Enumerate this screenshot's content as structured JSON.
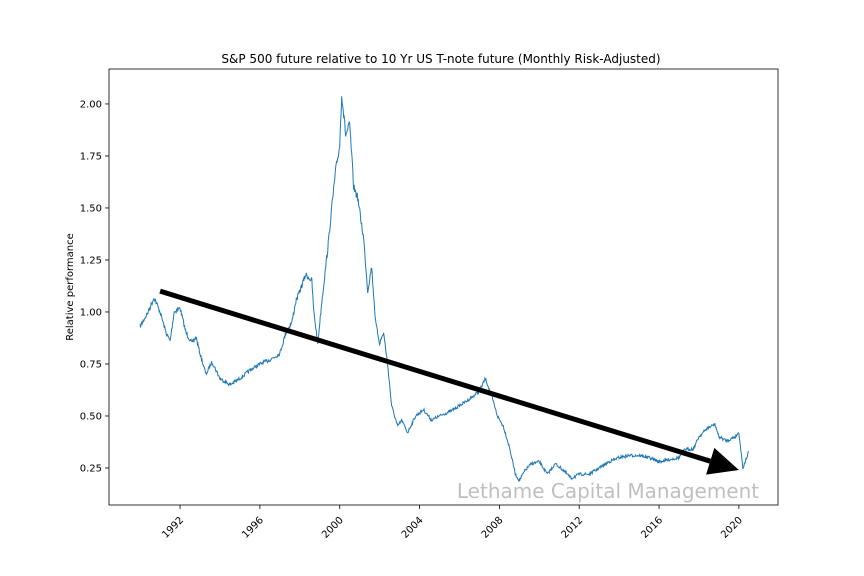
{
  "chart_data": {
    "type": "line",
    "title": "S&P 500 future relative to 10 Yr US T-note future (Monthly Risk-Adjusted)",
    "xlabel": "",
    "ylabel": "Relative performance",
    "xlim": [
      1988.44,
      2021.96
    ],
    "ylim": [
      0.072,
      2.168
    ],
    "xticks": [
      1992,
      1996,
      2000,
      2004,
      2008,
      2012,
      2016,
      2020
    ],
    "xtick_labels": [
      "1992",
      "1996",
      "2000",
      "2004",
      "2008",
      "2012",
      "2016",
      "2020"
    ],
    "yticks": [
      0.25,
      0.5,
      0.75,
      1.0,
      1.25,
      1.5,
      1.75,
      2.0
    ],
    "ytick_labels": [
      "0.25",
      "0.50",
      "0.75",
      "1.00",
      "1.25",
      "1.50",
      "1.75",
      "2.00"
    ],
    "grid": false,
    "line_color": "#1f77b4",
    "series": [
      {
        "x": [
          1990.0,
          1990.4,
          1990.7,
          1991.0,
          1991.3,
          1991.5,
          1991.7,
          1992.0,
          1992.3,
          1992.6,
          1992.8,
          1993.0,
          1993.3,
          1993.6,
          1994.0,
          1994.5,
          1995.0,
          1995.5,
          1996.0,
          1996.5,
          1997.0,
          1997.3,
          1997.6,
          1997.8,
          1998.0,
          1998.3,
          1998.6,
          1998.7,
          1998.9,
          1999.1,
          1999.4,
          1999.6,
          1999.8,
          2000.0,
          2000.1,
          2000.3,
          2000.5,
          2000.7,
          2000.9,
          2001.2,
          2001.4,
          2001.6,
          2001.8,
          2002.0,
          2002.2,
          2002.4,
          2002.6,
          2002.9,
          2003.1,
          2003.4,
          2003.8,
          2004.2,
          2004.6,
          2005.0,
          2005.5,
          2006.0,
          2006.5,
          2007.0,
          2007.3,
          2007.6,
          2007.9,
          2008.2,
          2008.5,
          2008.8,
          2009.0,
          2009.3,
          2009.6,
          2010.0,
          2010.4,
          2010.8,
          2011.2,
          2011.6,
          2012.0,
          2012.5,
          2013.0,
          2013.5,
          2014.0,
          2014.5,
          2015.0,
          2015.5,
          2016.0,
          2016.5,
          2017.0,
          2017.3,
          2017.7,
          2018.0,
          2018.4,
          2018.8,
          2019.0,
          2019.4,
          2019.8,
          2020.0,
          2020.2,
          2020.5
        ],
        "y": [
          0.93,
          1.0,
          1.07,
          1.0,
          0.9,
          0.86,
          1.0,
          1.02,
          0.9,
          0.85,
          0.88,
          0.8,
          0.7,
          0.76,
          0.68,
          0.65,
          0.68,
          0.72,
          0.75,
          0.77,
          0.8,
          0.9,
          0.95,
          1.05,
          1.1,
          1.18,
          1.15,
          1.0,
          0.85,
          1.05,
          1.3,
          1.5,
          1.68,
          1.8,
          2.05,
          1.85,
          1.9,
          1.6,
          1.55,
          1.35,
          1.1,
          1.22,
          0.95,
          0.85,
          0.9,
          0.75,
          0.55,
          0.45,
          0.48,
          0.42,
          0.5,
          0.53,
          0.48,
          0.5,
          0.52,
          0.55,
          0.58,
          0.62,
          0.68,
          0.6,
          0.5,
          0.45,
          0.35,
          0.22,
          0.19,
          0.24,
          0.27,
          0.28,
          0.22,
          0.27,
          0.24,
          0.2,
          0.22,
          0.22,
          0.25,
          0.28,
          0.3,
          0.31,
          0.31,
          0.3,
          0.28,
          0.29,
          0.3,
          0.34,
          0.34,
          0.4,
          0.44,
          0.46,
          0.4,
          0.38,
          0.4,
          0.42,
          0.25,
          0.33
        ]
      }
    ],
    "annotations": [
      {
        "type": "arrow",
        "from": [
          1991.0,
          1.1
        ],
        "to": [
          2020.0,
          0.24
        ],
        "color": "#000000"
      }
    ],
    "watermark": {
      "text": "Lethame Capital Management",
      "color": "#bfbfbf"
    }
  }
}
